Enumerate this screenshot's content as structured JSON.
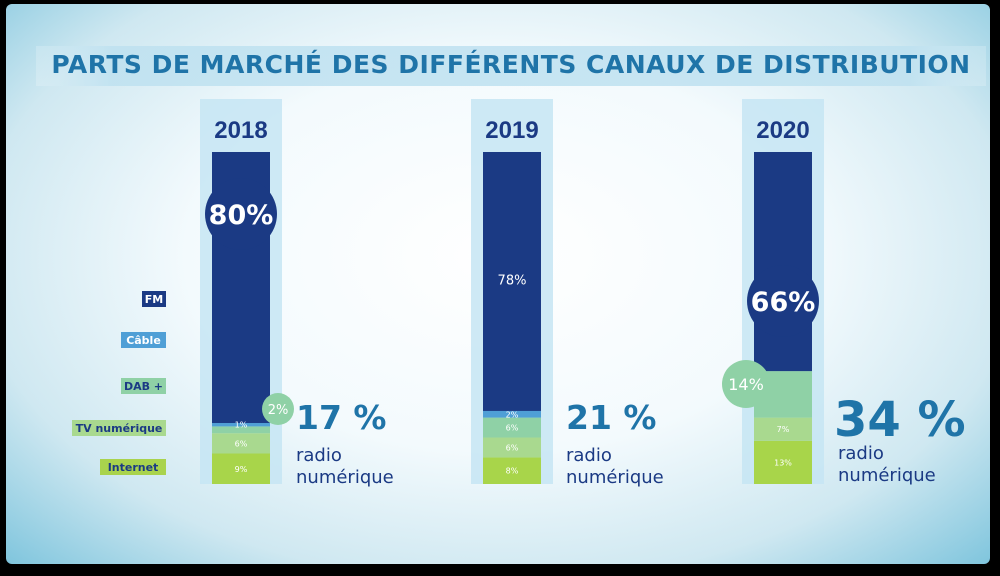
{
  "title": "PARTS DE MARCHÉ DES DIFFÉRENTS CANAUX DE DISTRIBUTION",
  "legend": [
    {
      "label": "FM",
      "bg": "#1b3a84",
      "fg": "#ffffff"
    },
    {
      "label": "Câble",
      "bg": "#4f9fd6",
      "fg": "#ffffff"
    },
    {
      "label": "DAB +",
      "bg": "#8fd1a6",
      "fg": "#1b3a84"
    },
    {
      "label": "TV numérique",
      "bg": "#a9d98f",
      "fg": "#1b3a84"
    },
    {
      "label": "Internet",
      "bg": "#a9d34d",
      "fg": "#1b3a84"
    }
  ],
  "colors": {
    "FM": "#1b3a84",
    "Câble": "#4f9fd6",
    "DAB +": "#8fd1a6",
    "TV numérique": "#a9d98f",
    "Internet": "#a8d54a",
    "year_band": "#c5e5f3",
    "year_text": "#1b3a84",
    "total_text": "#1f74a8"
  },
  "chart_data": {
    "type": "bar",
    "stacked": true,
    "categories": [
      "2018",
      "2019",
      "2020"
    ],
    "series": [
      {
        "name": "Internet",
        "values": [
          9,
          8,
          13
        ],
        "labels": [
          "9%",
          "8%",
          "13%"
        ]
      },
      {
        "name": "TV numérique",
        "values": [
          6,
          6,
          7
        ],
        "labels": [
          "6%",
          "6%",
          "7%"
        ]
      },
      {
        "name": "DAB +",
        "values": [
          2,
          6,
          14
        ],
        "labels": [
          "2%",
          "6%",
          "14%"
        ]
      },
      {
        "name": "Câble",
        "values": [
          1,
          2,
          0
        ],
        "labels": [
          "1%",
          "2%",
          ""
        ]
      },
      {
        "name": "FM",
        "values": [
          80,
          78,
          66
        ],
        "labels": [
          "80%",
          "78%",
          "66%"
        ]
      }
    ],
    "totals": [
      {
        "value": "17 %",
        "line1": "radio",
        "line2": "numérique"
      },
      {
        "value": "21 %",
        "line1": "radio",
        "line2": "numérique"
      },
      {
        "value": "34 %",
        "line1": "radio",
        "line2": "numérique"
      }
    ]
  }
}
